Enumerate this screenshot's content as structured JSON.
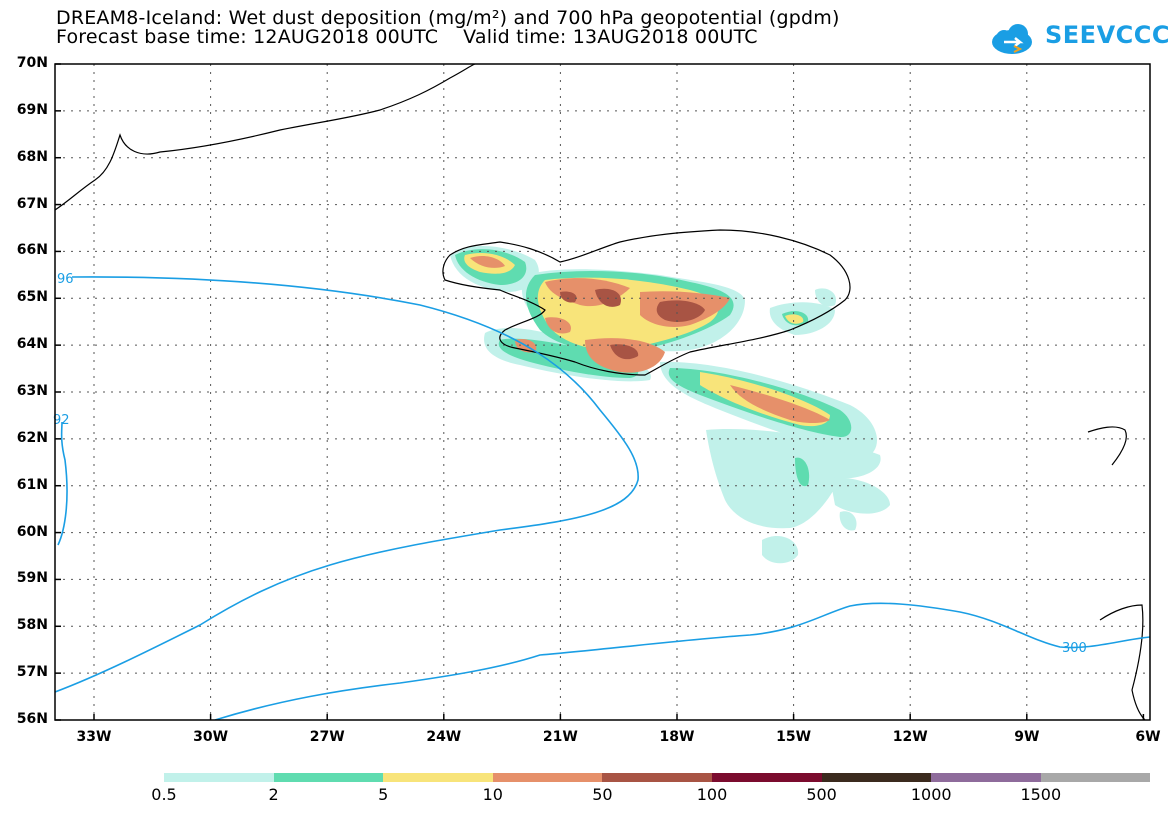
{
  "header": {
    "title_line1": "DREAM8-Iceland: Wet dust deposition (mg/m²) and 700 hPa geopotential (gpdm)",
    "title_line2": "Forecast base time: 12AUG2018 00UTC    Valid time: 13AUG2018 00UTC"
  },
  "logo": {
    "text": "SEEVCCC",
    "icon": "cloud-icon",
    "color": "#1a9ee4"
  },
  "map": {
    "lat_labels": [
      "70N",
      "69N",
      "68N",
      "67N",
      "66N",
      "65N",
      "64N",
      "63N",
      "62N",
      "61N",
      "60N",
      "59N",
      "58N",
      "57N",
      "56N"
    ],
    "lon_labels": [
      "33W",
      "30W",
      "27W",
      "24W",
      "21W",
      "18W",
      "15W",
      "12W",
      "9W",
      "6W"
    ],
    "contour_color": "#1a9ee4",
    "contour_labels": [
      "96",
      "92",
      "300"
    ]
  },
  "legend": {
    "colors": [
      "#c1f1ea",
      "#5fdcb0",
      "#f8e47a",
      "#e6906a",
      "#a85444",
      "#7b0b2e",
      "#3b2a1e",
      "#8e6b9b",
      "#a8a8a8"
    ],
    "labels": [
      "0.5",
      "2",
      "5",
      "10",
      "50",
      "100",
      "500",
      "1000",
      "1500"
    ]
  }
}
